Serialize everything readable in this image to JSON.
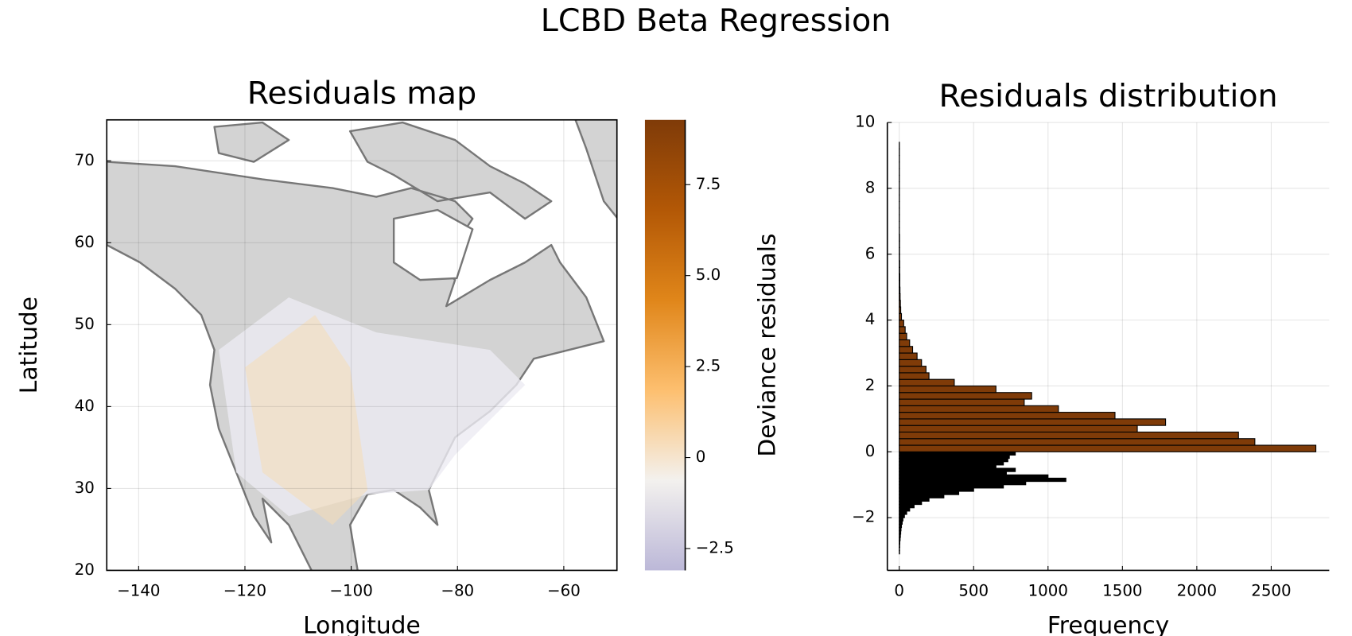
{
  "title": "LCBD Beta Regression",
  "chart_data": [
    {
      "type": "map",
      "title": "Residuals map",
      "xlabel": "Longitude",
      "ylabel": "Latitude",
      "xlim": [
        -146,
        -50
      ],
      "ylim": [
        20,
        75
      ],
      "xticks": [
        {
          "value": -140,
          "label": "−140"
        },
        {
          "value": -120,
          "label": "−120"
        },
        {
          "value": -100,
          "label": "−100"
        },
        {
          "value": -80,
          "label": "−80"
        },
        {
          "value": -60,
          "label": "−60"
        }
      ],
      "yticks": [
        20,
        30,
        40,
        50,
        60,
        70
      ],
      "grid": true,
      "colorbar_label": "Deviance residuals",
      "clim": [
        -3.1,
        9.28
      ],
      "cticks": [
        {
          "value": -2.5,
          "label": "−2.5"
        },
        0,
        2.5,
        {
          "value": 5,
          "label": "5.0"
        },
        7.5
      ],
      "colormap": [
        "#bcb8d8",
        "#f3f1ee",
        "#fdbf6f",
        "#e0861a",
        "#b35806",
        "#7f3b08"
      ],
      "land_color": "#d3d3d3",
      "coast_color": "#777777"
    },
    {
      "type": "histogram",
      "orientation": "horizontal",
      "title": "Residuals distribution",
      "xlabel": "Frequency",
      "xlim": [
        -80,
        2890
      ],
      "ylim": [
        -3.6,
        10
      ],
      "xticks": [
        0,
        500,
        1000,
        1500,
        2000,
        2500
      ],
      "yticks": [
        {
          "value": -2,
          "label": "−2"
        },
        0,
        2,
        4,
        6,
        8,
        10
      ],
      "grid": true,
      "series": [
        {
          "color": "#000000",
          "bins": [
            -3.1,
            -3.0,
            -2.9,
            -2.8,
            -2.7,
            -2.6,
            -2.5,
            -2.4,
            -2.3,
            -2.2,
            -2.1,
            -2.0,
            -1.9,
            -1.8,
            -1.7,
            -1.6,
            -1.5,
            -1.4,
            -1.3,
            -1.2,
            -1.1,
            -1.0,
            -0.9,
            -0.8,
            -0.7,
            -0.6,
            -0.5,
            -0.4,
            -0.3,
            -0.2,
            -0.1,
            0
          ],
          "values": [
            2,
            2,
            3,
            4,
            6,
            8,
            10,
            12,
            15,
            20,
            25,
            35,
            50,
            70,
            100,
            150,
            200,
            300,
            400,
            500,
            700,
            850,
            1120,
            1000,
            720,
            780,
            650,
            700,
            730,
            740,
            780
          ]
        },
        {
          "color": "#7f3b08",
          "bins": [
            0,
            0.2,
            0.4,
            0.6,
            0.8,
            1.0,
            1.2,
            1.4,
            1.6,
            1.8,
            2.0,
            2.2,
            2.4,
            2.6,
            2.8,
            3.0,
            3.2,
            3.4,
            3.6,
            3.8,
            4.0,
            4.2,
            4.4,
            4.6,
            4.8,
            5.0,
            5.2,
            5.4,
            5.6,
            5.8,
            6.0,
            6.2,
            6.4,
            6.6,
            6.8,
            7.0,
            7.2,
            7.4,
            7.6,
            7.8,
            8.0,
            8.2,
            8.4,
            8.6,
            8.8,
            9.0,
            9.2,
            9.4
          ],
          "values": [
            2800,
            2390,
            2280,
            1600,
            1790,
            1450,
            1070,
            840,
            890,
            650,
            370,
            200,
            180,
            150,
            120,
            90,
            70,
            50,
            40,
            30,
            15,
            10,
            8,
            6,
            5,
            4,
            4,
            3,
            3,
            2,
            2,
            2,
            2,
            1,
            1,
            1,
            1,
            1,
            1,
            1,
            1,
            1,
            1,
            1,
            1,
            1,
            1
          ]
        }
      ]
    }
  ]
}
